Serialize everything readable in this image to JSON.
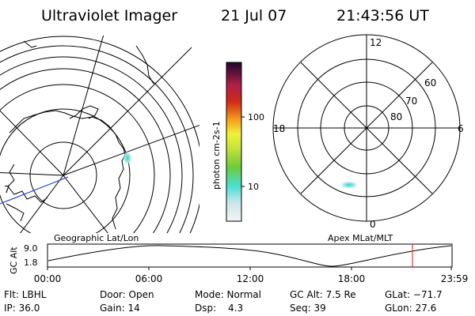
{
  "header": {
    "title": "Ultraviolet Imager",
    "date": "21 Jul 07",
    "time": "21:43:56 UT"
  },
  "colorbar": {
    "label": "photon cm-2s-1",
    "ticks": [
      "100",
      "10"
    ],
    "colors": [
      "#d8e8ec",
      "#49dfd4",
      "#6ccb3a",
      "#eff23a",
      "#f49d1b",
      "#d22a16",
      "#ae1e49",
      "#3a0a4a"
    ]
  },
  "left_panel": {
    "label": "Geographic Lat/Lon",
    "edge_marks": [
      "7"
    ]
  },
  "right_panel": {
    "label": "Apex MLat/MLT",
    "mlt_labels": {
      "top": "12",
      "right": "6",
      "bottom": "0",
      "left": "18"
    },
    "lat_labels": [
      "60",
      "70",
      "80"
    ]
  },
  "altitude_plot": {
    "ylabel": "GC Alt",
    "yticks": [
      "9.0",
      "1.8"
    ],
    "xticks": [
      "00:00",
      "06:00",
      "12:00",
      "18:00",
      "23:59"
    ],
    "marker_color": "#cc2222"
  },
  "info": {
    "filter": "Flt: LBHL",
    "ip": "IP: 36.0",
    "door": "Door: Open",
    "gain": "Gain: 14",
    "mode": "Mode: Normal",
    "dsp_label": "Dsp:",
    "dsp_value": "4.3",
    "gc_alt": "GC Alt: 7.5 Re",
    "seq": "Seq: 39",
    "glat": "GLat: −71.7",
    "glon": "GLon:  27.6"
  }
}
